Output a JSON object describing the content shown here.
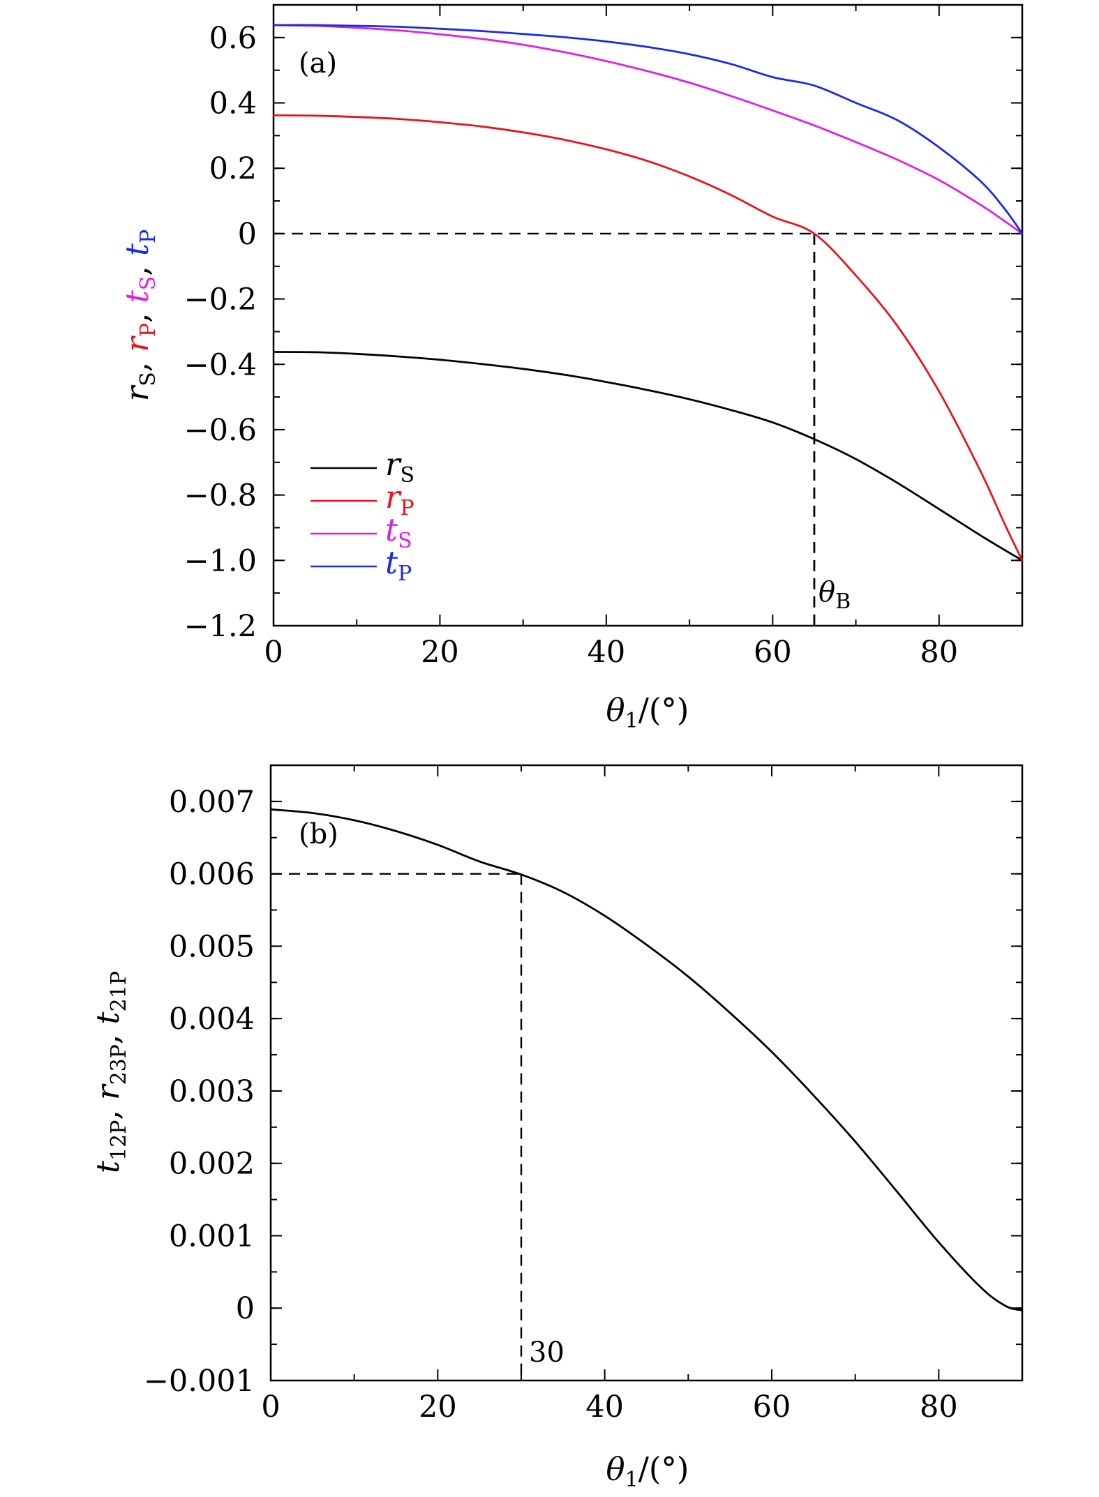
{
  "chart_data": [
    {
      "type": "line",
      "panel_label": "(a)",
      "xlabel": "θ1/(°)",
      "ylabel": "rS, rP, tS, tP",
      "xlim": [
        0,
        90
      ],
      "ylim": [
        -1.2,
        0.7
      ],
      "x_ticks": [
        "0",
        "20",
        "40",
        "60",
        "80"
      ],
      "y_ticks": [
        "0.6",
        "0.4",
        "0.2",
        "0",
        "−0.2",
        "−0.4",
        "−0.6",
        "−0.8",
        "−1.0",
        "−1.2"
      ],
      "legend_position": "lower-left",
      "x": [
        0,
        5,
        10,
        15,
        20,
        25,
        30,
        35,
        40,
        45,
        50,
        55,
        60,
        65,
        70,
        75,
        80,
        85,
        88,
        90
      ],
      "series": [
        {
          "name": "rS",
          "color": "#000000",
          "values": [
            -0.362,
            -0.363,
            -0.368,
            -0.376,
            -0.386,
            -0.399,
            -0.414,
            -0.432,
            -0.454,
            -0.479,
            -0.507,
            -0.54,
            -0.578,
            -0.629,
            -0.69,
            -0.763,
            -0.843,
            -0.924,
            -0.97,
            -1.0
          ]
        },
        {
          "name": "rP",
          "color": "#e8141c",
          "values": [
            0.362,
            0.361,
            0.357,
            0.351,
            0.341,
            0.328,
            0.31,
            0.287,
            0.258,
            0.222,
            0.175,
            0.118,
            0.052,
            0.0,
            -0.128,
            -0.283,
            -0.483,
            -0.728,
            -0.895,
            -1.0
          ]
        },
        {
          "name": "tS",
          "color": "#e020e0",
          "values": [
            0.638,
            0.636,
            0.63,
            0.622,
            0.61,
            0.596,
            0.578,
            0.555,
            0.528,
            0.497,
            0.462,
            0.421,
            0.377,
            0.331,
            0.28,
            0.226,
            0.164,
            0.088,
            0.036,
            0.0
          ]
        },
        {
          "name": "tP",
          "color": "#1a2ae8",
          "values": [
            0.638,
            0.638,
            0.636,
            0.633,
            0.627,
            0.62,
            0.611,
            0.601,
            0.588,
            0.571,
            0.549,
            0.519,
            0.479,
            0.453,
            0.4,
            0.347,
            0.264,
            0.16,
            0.072,
            0.0
          ]
        }
      ],
      "reference_lines": [
        {
          "kind": "horizontal",
          "y": 0
        },
        {
          "kind": "vertical",
          "x": 65
        }
      ],
      "annotations": [
        {
          "text": "θB",
          "x": 65
        }
      ]
    },
    {
      "type": "line",
      "panel_label": "(b)",
      "xlabel": "θ1/(°)",
      "ylabel": "t12P, r23P, t21P",
      "xlim": [
        0,
        90
      ],
      "ylim": [
        -0.001,
        0.0075
      ],
      "x_ticks": [
        "0",
        "20",
        "40",
        "60",
        "80"
      ],
      "y_ticks": [
        "0.007",
        "0.006",
        "0.005",
        "0.004",
        "0.003",
        "0.002",
        "0.001",
        "0",
        "−0.001"
      ],
      "x": [
        0,
        5,
        10,
        15,
        20,
        25,
        30,
        35,
        40,
        45,
        50,
        55,
        60,
        65,
        70,
        75,
        80,
        85,
        88,
        90
      ],
      "series": [
        {
          "name": "",
          "color": "#000000",
          "values": [
            0.00689,
            0.00684,
            0.00674,
            0.00659,
            0.0064,
            0.00617,
            0.00599,
            0.00575,
            0.00542,
            0.00502,
            0.00458,
            0.00408,
            0.00354,
            0.00294,
            0.0023,
            0.00161,
            0.00091,
            0.00029,
            3e-05,
            -3e-05
          ]
        }
      ],
      "reference_lines": [
        {
          "kind": "horizontal",
          "y": 0.006
        },
        {
          "kind": "vertical",
          "x": 30
        }
      ],
      "annotations": [
        {
          "text": "30",
          "x": 30
        }
      ]
    }
  ],
  "labels": {
    "a": {
      "panel": "(a)",
      "ylabel": [
        "r",
        "S",
        ", ",
        "r",
        "P",
        ", ",
        "t",
        "S",
        ", ",
        "t",
        "P"
      ],
      "xlabel": [
        "θ",
        "1",
        "/(°)"
      ],
      "annotation": [
        "θ",
        "B"
      ],
      "legend": [
        {
          "sym": "r",
          "sub": "S"
        },
        {
          "sym": "r",
          "sub": "P"
        },
        {
          "sym": "t",
          "sub": "S"
        },
        {
          "sym": "t",
          "sub": "P"
        }
      ]
    },
    "b": {
      "panel": "(b)",
      "ylabel": [
        "t",
        "12P",
        ", ",
        "r",
        "23P",
        ", ",
        "t",
        "21P"
      ],
      "xlabel": [
        "θ",
        "1",
        "/(°)"
      ],
      "annotation": "30"
    }
  }
}
